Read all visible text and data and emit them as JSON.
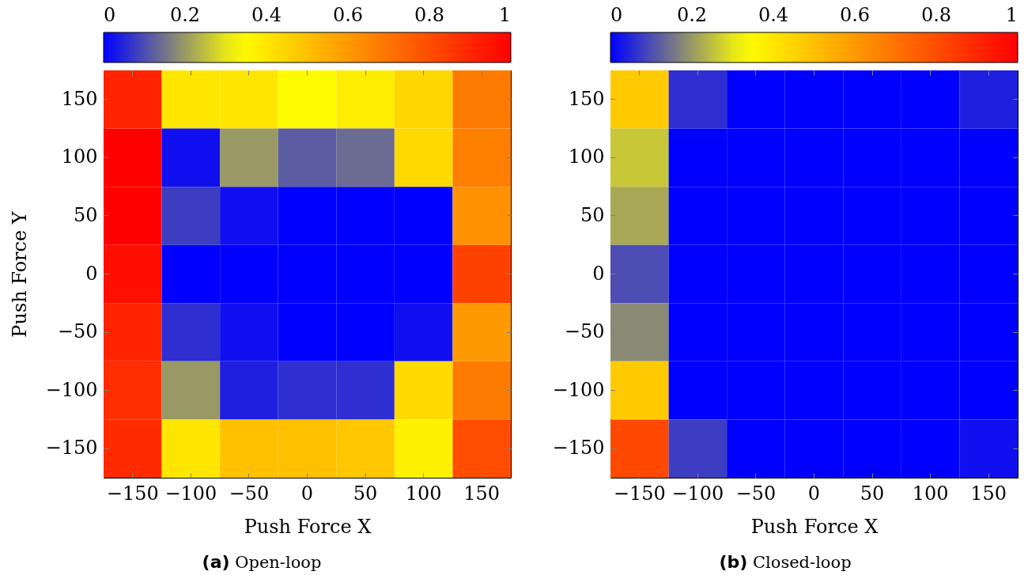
{
  "chart_data": [
    {
      "type": "heatmap",
      "title": "(a) Open-loop",
      "xlabel": "Push Force X",
      "ylabel": "Push Force Y",
      "categories": [
        "−150",
        "−100",
        "−50",
        "0",
        "50",
        "100",
        "150"
      ],
      "y_categories": [
        "150",
        "100",
        "50",
        "0",
        "−50",
        "−100",
        "−150"
      ],
      "cells": [
        [
          0.91,
          0.4,
          0.4,
          0.34,
          0.38,
          0.44,
          0.68
        ],
        [
          1.0,
          0.02,
          0.2,
          0.12,
          0.14,
          0.43,
          0.67
        ],
        [
          1.0,
          0.08,
          0.02,
          0,
          0,
          0,
          0.62
        ],
        [
          0.96,
          0,
          0,
          0,
          0,
          0,
          0.83
        ],
        [
          0.91,
          0.06,
          0.02,
          0,
          0,
          0.02,
          0.6
        ],
        [
          0.88,
          0.2,
          0.04,
          0.06,
          0.06,
          0.43,
          0.68
        ],
        [
          0.89,
          0.4,
          0.5,
          0.5,
          0.48,
          0.37,
          0.8
        ]
      ],
      "clim": [
        0,
        1
      ],
      "cticks": [
        0,
        0.2,
        0.4,
        0.6,
        0.8,
        1
      ]
    },
    {
      "type": "heatmap",
      "title": "(b) Closed-loop",
      "xlabel": "Push Force X",
      "categories": [
        "−150",
        "−100",
        "−50",
        "0",
        "50",
        "100",
        "150"
      ],
      "y_categories": [
        "150",
        "100",
        "50",
        "0",
        "−50",
        "−100",
        "−150"
      ],
      "cells": [
        [
          0.47,
          0.06,
          0,
          0,
          0,
          0,
          0.04
        ],
        [
          0.26,
          0,
          0,
          0,
          0,
          0,
          0
        ],
        [
          0.22,
          0,
          0,
          0,
          0,
          0,
          0
        ],
        [
          0.1,
          0,
          0,
          0,
          0,
          0,
          0
        ],
        [
          0.18,
          0,
          0,
          0,
          0,
          0,
          0
        ],
        [
          0.47,
          0,
          0,
          0,
          0,
          0,
          0
        ],
        [
          0.81,
          0.08,
          0,
          0,
          0,
          0,
          0.02
        ]
      ],
      "clim": [
        0,
        1
      ],
      "cticks": [
        0,
        0.2,
        0.4,
        0.6,
        0.8,
        1
      ]
    }
  ]
}
